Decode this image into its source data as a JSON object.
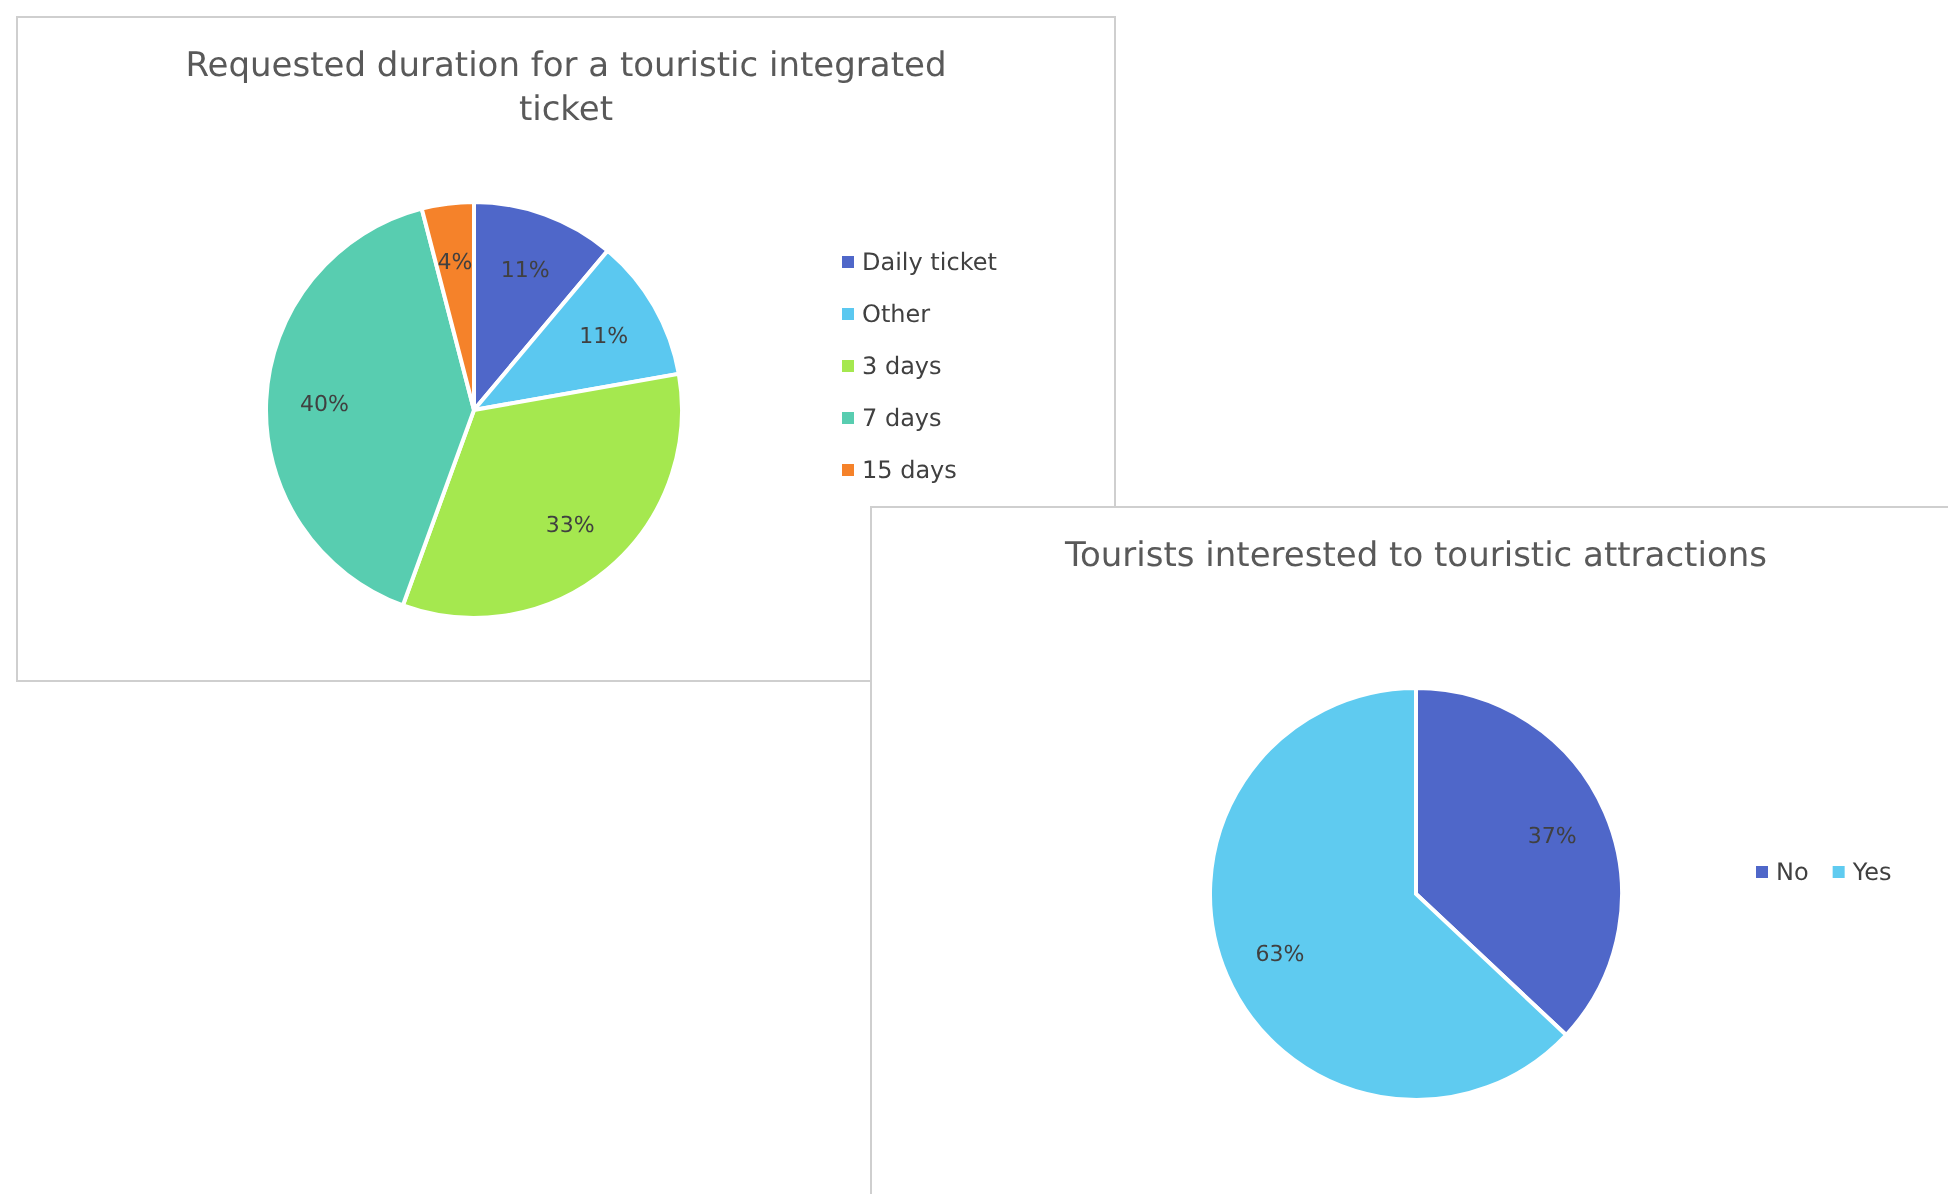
{
  "chart_data": [
    {
      "type": "pie",
      "title": "Requested duration for a touristic integrated ticket",
      "categories": [
        "Daily ticket",
        "Other",
        "3 days",
        "7 days",
        "15 days"
      ],
      "values": [
        11,
        11,
        33,
        40,
        4
      ],
      "value_labels": [
        "11%",
        "11%",
        "33%",
        "40%",
        "4%"
      ],
      "colors": [
        "#4f67c9",
        "#5bc8f0",
        "#a5e84f",
        "#58cdb0",
        "#f5822a"
      ],
      "legend": "right"
    },
    {
      "type": "pie",
      "title": "Tourists interested to touristic attractions",
      "categories": [
        "No",
        "Yes"
      ],
      "values": [
        37,
        63
      ],
      "value_labels": [
        "37%",
        "63%"
      ],
      "colors": [
        "#4f67c9",
        "#5fcbf0"
      ],
      "legend": "right"
    }
  ]
}
